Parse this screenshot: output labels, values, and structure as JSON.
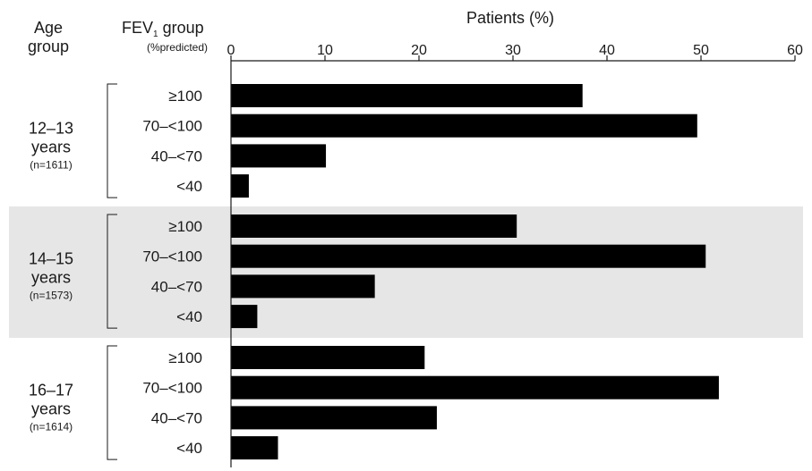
{
  "chart_data": {
    "type": "bar",
    "orientation": "horizontal",
    "title": "Patients (%)",
    "header_age": [
      "Age",
      "group"
    ],
    "header_fev": {
      "main": "FEV",
      "sub": "1",
      "rest": " group",
      "units": "(%predicted)"
    },
    "xlim": [
      0,
      60
    ],
    "xticks": [
      0,
      10,
      20,
      30,
      40,
      50,
      60
    ],
    "xtick_labels": [
      "0",
      "10",
      "20",
      "30",
      "40",
      "50",
      "60"
    ],
    "grid": false,
    "colors": {
      "bar": "#000000",
      "band": "#e6e6e6"
    },
    "groups": [
      {
        "age": "12–13",
        "years": "years",
        "n": "(n=1611)",
        "shaded": false,
        "categories": [
          "≥100",
          "70–<100",
          "40–<70",
          "<40"
        ],
        "values": [
          37.4,
          49.6,
          10.1,
          1.9
        ]
      },
      {
        "age": "14–15",
        "years": "years",
        "n": "(n=1573)",
        "shaded": true,
        "categories": [
          "≥100",
          "70–<100",
          "40–<70",
          "<40"
        ],
        "values": [
          30.4,
          50.5,
          15.3,
          2.8
        ]
      },
      {
        "age": "16–17",
        "years": "years",
        "n": "(n=1614)",
        "shaded": false,
        "categories": [
          "≥100",
          "70–<100",
          "40–<70",
          "<40"
        ],
        "values": [
          20.6,
          51.9,
          21.9,
          5.0
        ]
      }
    ]
  }
}
